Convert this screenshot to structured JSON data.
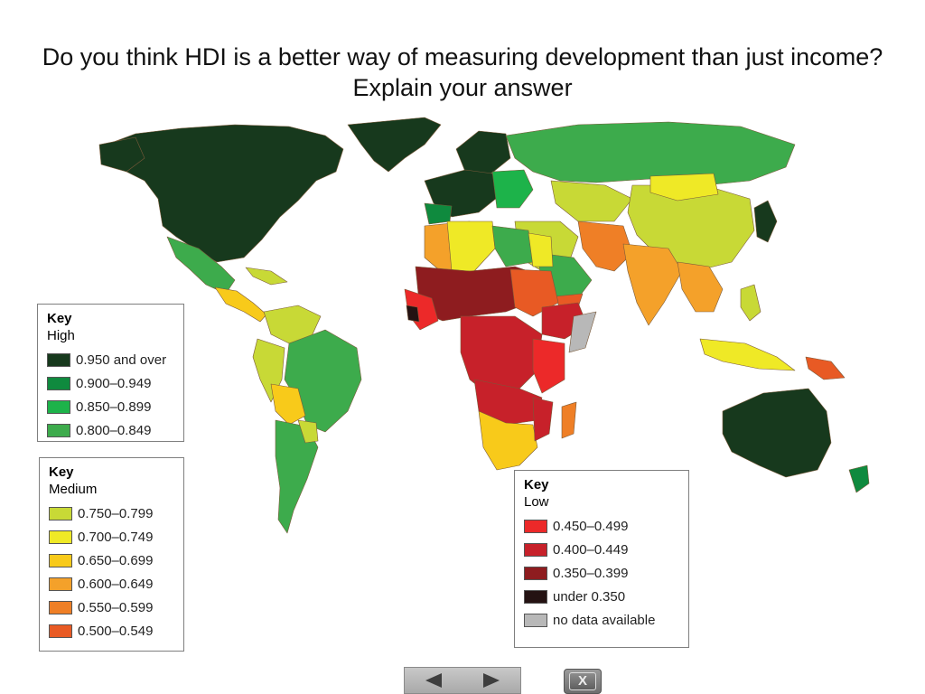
{
  "title": "Do you think HDI is a better way of measuring development than just income? Explain your answer",
  "colors": {
    "high_950": "#17391d",
    "high_900": "#0f8a3e",
    "high_850": "#1db34a",
    "high_800": "#3dab4c",
    "med_750": "#c8d936",
    "med_700": "#efe926",
    "med_650": "#f8ca1a",
    "med_600": "#f4a12a",
    "med_550": "#ef7f26",
    "med_500": "#e85a24",
    "low_450": "#ec2929",
    "low_400": "#c7212a",
    "low_350": "#8e1c1f",
    "low_under": "#241212",
    "no_data": "#b8b8b8"
  },
  "key_high": {
    "title": "Key",
    "category": "High",
    "items": [
      {
        "label": "0.950 and over",
        "color": "#17391d"
      },
      {
        "label": "0.900–0.949",
        "color": "#0f8a3e"
      },
      {
        "label": "0.850–0.899",
        "color": "#1db34a"
      },
      {
        "label": "0.800–0.849",
        "color": "#3dab4c"
      }
    ]
  },
  "key_medium": {
    "title": "Key",
    "category": "Medium",
    "items": [
      {
        "label": "0.750–0.799",
        "color": "#c8d936"
      },
      {
        "label": "0.700–0.749",
        "color": "#efe926"
      },
      {
        "label": "0.650–0.699",
        "color": "#f8ca1a"
      },
      {
        "label": "0.600–0.649",
        "color": "#f4a12a"
      },
      {
        "label": "0.550–0.599",
        "color": "#ef7f26"
      },
      {
        "label": "0.500–0.549",
        "color": "#e85a24"
      }
    ]
  },
  "key_low": {
    "title": "Key",
    "category": "Low",
    "items": [
      {
        "label": "0.450–0.499",
        "color": "#ec2929"
      },
      {
        "label": "0.400–0.449",
        "color": "#c7212a"
      },
      {
        "label": "0.350–0.399",
        "color": "#8e1c1f"
      },
      {
        "label": "under 0.350",
        "color": "#241212"
      },
      {
        "label": "no data available",
        "color": "#b8b8b8"
      }
    ]
  },
  "controls": {
    "prev_icon": "triangle-left-icon",
    "next_icon": "triangle-right-icon",
    "close_label": "X"
  }
}
